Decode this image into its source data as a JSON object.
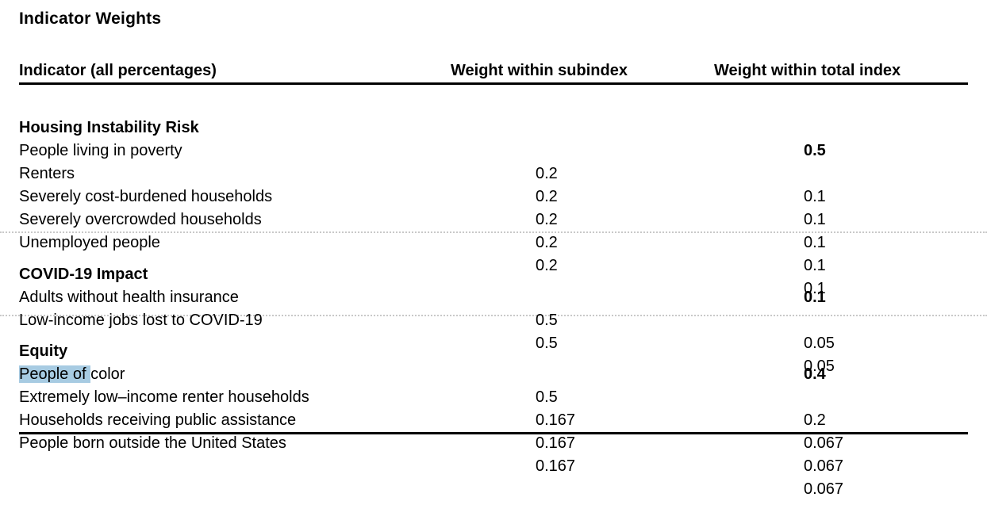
{
  "title": "Indicator Weights",
  "colors": {
    "selection_highlight": "#a7cbe2",
    "rule": "#000000",
    "dotted_separator": "#c9c9c9"
  },
  "table": {
    "columns": {
      "indicator": "Indicator (all percentages)",
      "subindex": "Weight within subindex",
      "total": "Weight within total index"
    },
    "sections": [
      {
        "name": "Housing Instability Risk",
        "total_weight": "0.5",
        "rows": [
          {
            "label": "People living in poverty",
            "subindex": "0.2",
            "total": "0.1"
          },
          {
            "label": "Renters",
            "subindex": "0.2",
            "total": "0.1"
          },
          {
            "label": "Severely cost-burdened households",
            "subindex": "0.2",
            "total": "0.1"
          },
          {
            "label": "Severely overcrowded households",
            "subindex": "0.2",
            "total": "0.1"
          },
          {
            "label": "Unemployed people",
            "subindex": "0.2",
            "total": "0.1"
          }
        ]
      },
      {
        "name": "COVID-19 Impact",
        "total_weight": "0.1",
        "rows": [
          {
            "label": "Adults without health insurance",
            "subindex": "0.5",
            "total": "0.05"
          },
          {
            "label": "Low-income jobs lost to COVID-19",
            "subindex": "0.5",
            "total": "0.05"
          }
        ]
      },
      {
        "name": "Equity",
        "total_weight": "0.4",
        "rows": [
          {
            "label_selected": "People of ",
            "label_rest": "color",
            "subindex": "0.5",
            "total": "0.2"
          },
          {
            "label": "Extremely low–income renter households",
            "subindex": "0.167",
            "total": "0.067"
          },
          {
            "label": "Households receiving public assistance",
            "subindex": "0.167",
            "total": "0.067"
          },
          {
            "label": "People born outside the United States",
            "subindex": "0.167",
            "total": "0.067"
          }
        ]
      }
    ]
  }
}
